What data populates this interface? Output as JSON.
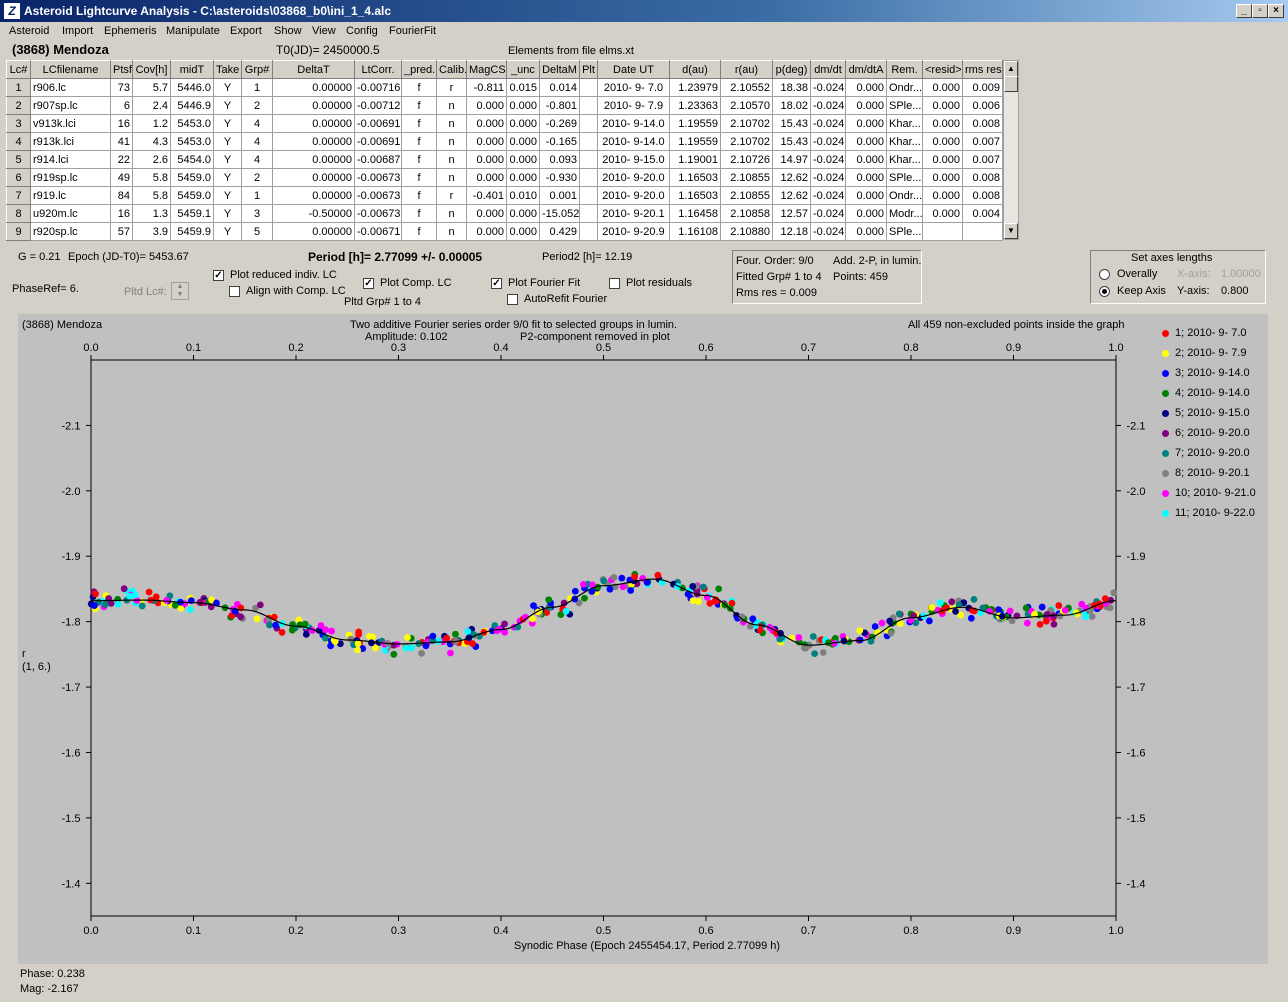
{
  "window": {
    "title": "Asteroid Lightcurve Analysis - C:\\asteroids\\03868_b0\\ini_1_4.alc",
    "buttons": {
      "minimize": "_",
      "restore": "▫",
      "close": "×"
    }
  },
  "menu": [
    "Asteroid",
    "Import",
    "Ephemeris",
    "Manipulate",
    "Export",
    "Show",
    "View",
    "Config",
    "FourierFit"
  ],
  "header": {
    "asteroid": "(3868) Mendoza",
    "t0": "T0(JD)= 2450000.5",
    "elements": "Elements from file elms.xt"
  },
  "table": {
    "columns": [
      "Lc#",
      "LCfilename",
      "Ptsf",
      "Cov[h]",
      "midT",
      "Take",
      "Grp#",
      "DeltaT",
      "LtCorr.",
      "_pred.",
      "Calib.",
      "MagCS",
      "_unc",
      "DeltaM",
      "Plt",
      "Date UT",
      "d(au)",
      "r(au)",
      "p(deg)",
      "dm/dt",
      "dm/dtA",
      "Rem.",
      "<resid>",
      "rms res"
    ],
    "rows": [
      [
        "1",
        "r906.lc",
        "73",
        "5.7",
        "5446.0",
        "Y",
        "1",
        "0.00000",
        "-0.00716",
        "f",
        "r",
        "-0.811",
        "0.015",
        "0.014",
        "",
        "2010- 9- 7.0",
        "1.23979",
        "2.10552",
        "18.38",
        "-0.024",
        "0.000",
        "Ondr...",
        "0.000",
        "0.009"
      ],
      [
        "2",
        "r907sp.lc",
        "6",
        "2.4",
        "5446.9",
        "Y",
        "2",
        "0.00000",
        "-0.00712",
        "f",
        "n",
        "0.000",
        "0.000",
        "-0.801",
        "",
        "2010- 9- 7.9",
        "1.23363",
        "2.10570",
        "18.02",
        "-0.024",
        "0.000",
        "SPle...",
        "0.000",
        "0.006"
      ],
      [
        "3",
        "v913k.lci",
        "16",
        "1.2",
        "5453.0",
        "Y",
        "4",
        "0.00000",
        "-0.00691",
        "f",
        "n",
        "0.000",
        "0.000",
        "-0.269",
        "",
        "2010- 9-14.0",
        "1.19559",
        "2.10702",
        "15.43",
        "-0.024",
        "0.000",
        "Khar...",
        "0.000",
        "0.008"
      ],
      [
        "4",
        "r913k.lci",
        "41",
        "4.3",
        "5453.0",
        "Y",
        "4",
        "0.00000",
        "-0.00691",
        "f",
        "n",
        "0.000",
        "0.000",
        "-0.165",
        "",
        "2010- 9-14.0",
        "1.19559",
        "2.10702",
        "15.43",
        "-0.024",
        "0.000",
        "Khar...",
        "0.000",
        "0.007"
      ],
      [
        "5",
        "r914.lci",
        "22",
        "2.6",
        "5454.0",
        "Y",
        "4",
        "0.00000",
        "-0.00687",
        "f",
        "n",
        "0.000",
        "0.000",
        "0.093",
        "",
        "2010- 9-15.0",
        "1.19001",
        "2.10726",
        "14.97",
        "-0.024",
        "0.000",
        "Khar...",
        "0.000",
        "0.007"
      ],
      [
        "6",
        "r919sp.lc",
        "49",
        "5.8",
        "5459.0",
        "Y",
        "2",
        "0.00000",
        "-0.00673",
        "f",
        "n",
        "0.000",
        "0.000",
        "-0.930",
        "",
        "2010- 9-20.0",
        "1.16503",
        "2.10855",
        "12.62",
        "-0.024",
        "0.000",
        "SPle...",
        "0.000",
        "0.008"
      ],
      [
        "7",
        "r919.lc",
        "84",
        "5.8",
        "5459.0",
        "Y",
        "1",
        "0.00000",
        "-0.00673",
        "f",
        "r",
        "-0.401",
        "0.010",
        "0.001",
        "",
        "2010- 9-20.0",
        "1.16503",
        "2.10855",
        "12.62",
        "-0.024",
        "0.000",
        "Ondr...",
        "0.000",
        "0.008"
      ],
      [
        "8",
        "u920m.lc",
        "16",
        "1.3",
        "5459.1",
        "Y",
        "3",
        "-0.50000",
        "-0.00673",
        "f",
        "n",
        "0.000",
        "0.000",
        "-15.052",
        "",
        "2010- 9-20.1",
        "1.16458",
        "2.10858",
        "12.57",
        "-0.024",
        "0.000",
        "Modr...",
        "0.000",
        "0.004"
      ],
      [
        "9",
        "r920sp.lc",
        "57",
        "3.9",
        "5459.9",
        "Y",
        "5",
        "0.00000",
        "-0.00671",
        "f",
        "n",
        "0.000",
        "0.000",
        "0.429",
        "",
        "2010- 9-20.9",
        "1.16108",
        "2.10880",
        "12.18",
        "-0.024",
        "0.000",
        "SPle...",
        "",
        ""
      ]
    ]
  },
  "controls": {
    "g": "G = 0.21",
    "epoch": "Epoch (JD-T0)= 5453.67",
    "period": "Period [h]= 2.77099 +/- 0.00005",
    "period2": "Period2 [h]= 12.19",
    "phaseref": "PhaseRef= 6.",
    "pltd_lc": "Pltd Lc#:",
    "plot_reduced": "Plot reduced indiv. LC",
    "align_comp": "Align with Comp. LC",
    "plot_comp": "Plot Comp. LC",
    "pltd_grp": "Pltd Grp#  1   to    4",
    "plot_fourier": "Plot Fourier Fit",
    "autorefit": "AutoRefit Fourier",
    "plot_residuals": "Plot residuals"
  },
  "fourier_info": {
    "order": "Four. Order:  9/0",
    "add": "Add. 2-P, in lumin.",
    "fitted": "Fitted Grp# 1 to 4",
    "points": "Points: 459",
    "rms": "Rms res     = 0.009"
  },
  "axes_panel": {
    "title": "Set axes lengths",
    "overally": "Overally",
    "keep_axis": "Keep Axis",
    "x_axis_label": "X-axis:",
    "x_axis_value": "1.00000",
    "y_axis_label": "Y-axis:",
    "y_axis_value": "0.800"
  },
  "plot_text": {
    "name": "(3868) Mendoza",
    "fit_desc": "Two additive Fourier series order 9/0 fit to selected groups in lumin.",
    "amplitude": "Amplitude: 0.102",
    "p2": "P2-component removed in plot",
    "points_note": "All 459 non-excluded points inside the graph",
    "y_label_1": "r",
    "y_label_2": "(1, 6.)",
    "x_label": "Synodic Phase (Epoch 2455454.17, Period 2.77099 h)"
  },
  "status": {
    "phase": "Phase:  0.238",
    "mag": "Mag:    -2.167"
  },
  "chart_data": {
    "type": "scatter",
    "xlabel": "Synodic Phase (Epoch 2455454.17, Period 2.77099 h)",
    "ylabel": "r (1, 6.)",
    "xlim": [
      0.0,
      1.0
    ],
    "ylim": [
      -2.2,
      -1.35
    ],
    "y_inverted": true,
    "x_ticks": [
      0.0,
      0.1,
      0.2,
      0.3,
      0.4,
      0.5,
      0.6,
      0.7,
      0.8,
      0.9,
      1.0
    ],
    "y_ticks": [
      -2.1,
      -2.0,
      -1.9,
      -1.8,
      -1.7,
      -1.6,
      -1.5,
      -1.4
    ],
    "fit_curve": {
      "x": [
        0.0,
        0.05,
        0.1,
        0.15,
        0.2,
        0.25,
        0.3,
        0.35,
        0.4,
        0.45,
        0.5,
        0.55,
        0.6,
        0.65,
        0.7,
        0.75,
        0.8,
        0.85,
        0.9,
        0.95,
        1.0
      ],
      "y": [
        -1.832,
        -1.833,
        -1.829,
        -1.818,
        -1.793,
        -1.772,
        -1.766,
        -1.769,
        -1.788,
        -1.822,
        -1.855,
        -1.865,
        -1.84,
        -1.795,
        -1.764,
        -1.771,
        -1.806,
        -1.822,
        -1.806,
        -1.81,
        -1.832
      ]
    },
    "legend_position": "right",
    "series": [
      {
        "name": "1; 2010- 9- 7.0",
        "color": "#ff0000"
      },
      {
        "name": "2; 2010- 9- 7.9",
        "color": "#ffff00"
      },
      {
        "name": "3; 2010- 9-14.0",
        "color": "#0000ff"
      },
      {
        "name": "4; 2010- 9-14.0",
        "color": "#008000"
      },
      {
        "name": "5; 2010- 9-15.0",
        "color": "#000080"
      },
      {
        "name": "6; 2010- 9-20.0",
        "color": "#800080"
      },
      {
        "name": "7; 2010- 9-20.0",
        "color": "#008080"
      },
      {
        "name": "8; 2010- 9-20.1",
        "color": "#808080"
      },
      {
        "name": "10; 2010- 9-21.0",
        "color": "#ff00ff"
      },
      {
        "name": "11; 2010- 9-22.0",
        "color": "#00ffff"
      }
    ],
    "total_points": 459
  }
}
